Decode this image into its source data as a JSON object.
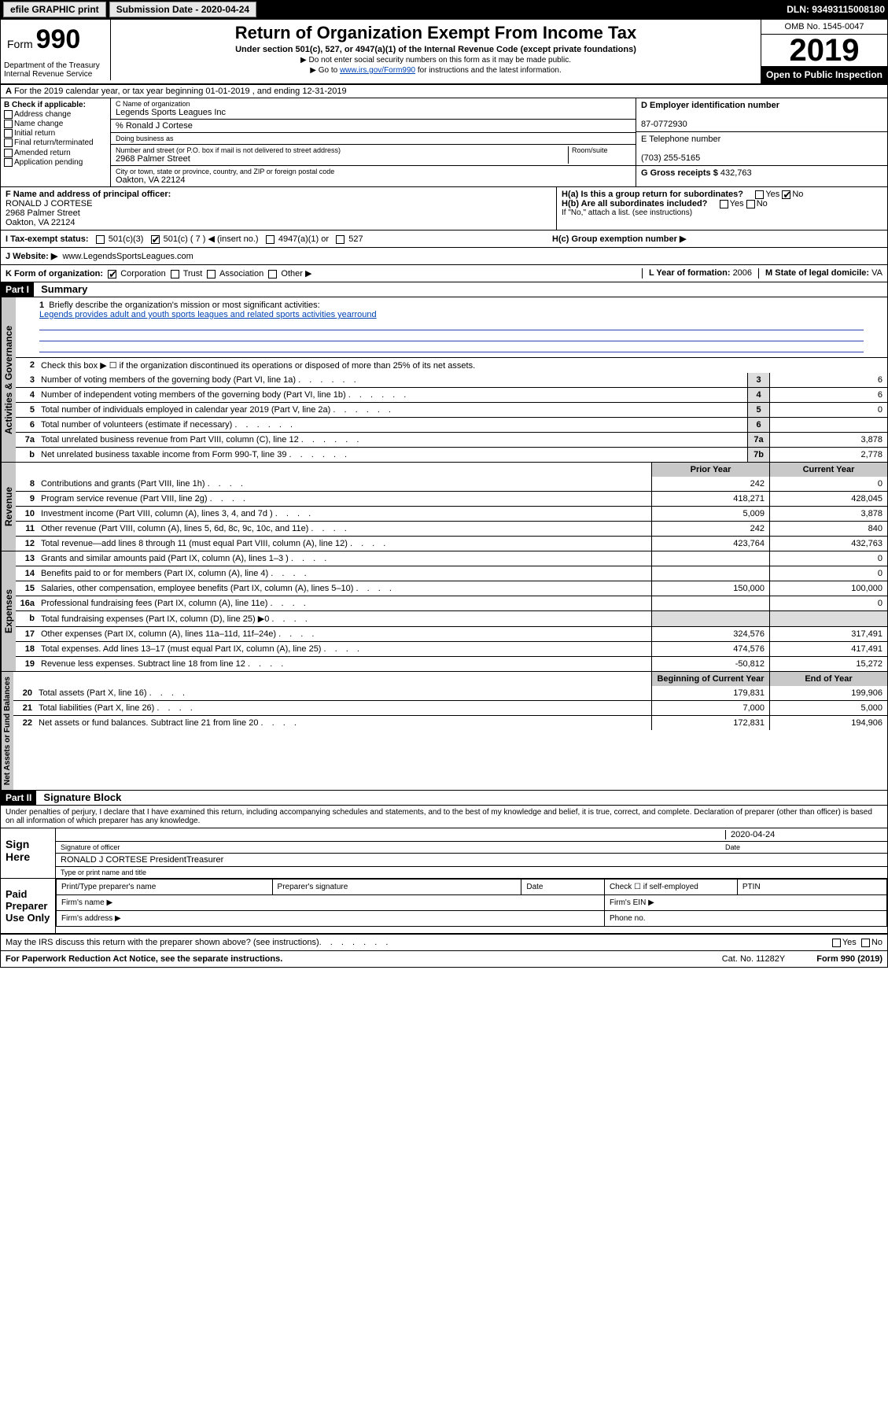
{
  "header": {
    "efile": "efile GRAPHIC print",
    "submission_label": "Submission Date - 2020-04-24",
    "dln": "DLN: 93493115008180"
  },
  "form": {
    "form_prefix": "Form",
    "form_number": "990",
    "title": "Return of Organization Exempt From Income Tax",
    "subtitle": "Under section 501(c), 527, or 4947(a)(1) of the Internal Revenue Code (except private foundations)",
    "note1": "▶ Do not enter social security numbers on this form as it may be made public.",
    "note2_pre": "▶ Go to ",
    "note2_link": "www.irs.gov/Form990",
    "note2_post": " for instructions and the latest information.",
    "omb": "OMB No. 1545-0047",
    "year": "2019",
    "open": "Open to Public Inspection",
    "dept1": "Department of the Treasury",
    "dept2": "Internal Revenue Service"
  },
  "line_a": "For the 2019 calendar year, or tax year beginning 01-01-2019   , and ending 12-31-2019",
  "b": {
    "label": "B Check if applicable:",
    "items": [
      "Address change",
      "Name change",
      "Initial return",
      "Final return/terminated",
      "Amended return",
      "Application pending"
    ]
  },
  "c": {
    "name_label": "C Name of organization",
    "name": "Legends Sports Leagues Inc",
    "care_of": "% Ronald J Cortese",
    "dba_label": "Doing business as",
    "addr_label": "Number and street (or P.O. box if mail is not delivered to street address)",
    "room_label": "Room/suite",
    "addr": "2968 Palmer Street",
    "city_label": "City or town, state or province, country, and ZIP or foreign postal code",
    "city": "Oakton, VA  22124"
  },
  "d": {
    "label": "D Employer identification number",
    "value": "87-0772930"
  },
  "e": {
    "label": "E Telephone number",
    "value": "(703) 255-5165"
  },
  "g": {
    "label": "G Gross receipts $",
    "value": "432,763"
  },
  "f": {
    "label": "F  Name and address of principal officer:",
    "name": "RONALD J CORTESE",
    "addr1": "2968 Palmer Street",
    "addr2": "Oakton, VA  22124"
  },
  "h": {
    "a": "H(a)  Is this a group return for subordinates?",
    "b": "H(b)  Are all subordinates included?",
    "b_note": "If \"No,\" attach a list. (see instructions)",
    "c": "H(c)  Group exemption number ▶",
    "yes": "Yes",
    "no": "No"
  },
  "i": {
    "label": "I  Tax-exempt status:",
    "o1": "501(c)(3)",
    "o2": "501(c) ( 7 ) ◀ (insert no.)",
    "o3": "4947(a)(1) or",
    "o4": "527"
  },
  "j": {
    "label": "J  Website: ▶",
    "value": "www.LegendsSportsLeagues.com"
  },
  "k": {
    "label": "K Form of organization:",
    "o1": "Corporation",
    "o2": "Trust",
    "o3": "Association",
    "o4": "Other ▶"
  },
  "l": {
    "label": "L Year of formation:",
    "value": "2006"
  },
  "m": {
    "label": "M State of legal domicile:",
    "value": "VA"
  },
  "part1": {
    "tag": "Part I",
    "title": "Summary"
  },
  "summary": {
    "l1_label": "Briefly describe the organization's mission or most significant activities:",
    "l1_text": "Legends provides adult and youth sports leagues and related sports activities yearround",
    "l2": "Check this box ▶ ☐ if the organization discontinued its operations or disposed of more than 25% of its net assets.",
    "rows_gov": [
      {
        "n": "3",
        "d": "Number of voting members of the governing body (Part VI, line 1a)",
        "box": "3",
        "v": "6"
      },
      {
        "n": "4",
        "d": "Number of independent voting members of the governing body (Part VI, line 1b)",
        "box": "4",
        "v": "6"
      },
      {
        "n": "5",
        "d": "Total number of individuals employed in calendar year 2019 (Part V, line 2a)",
        "box": "5",
        "v": "0"
      },
      {
        "n": "6",
        "d": "Total number of volunteers (estimate if necessary)",
        "box": "6",
        "v": ""
      },
      {
        "n": "7a",
        "d": "Total unrelated business revenue from Part VIII, column (C), line 12",
        "box": "7a",
        "v": "3,878"
      },
      {
        "n": "b",
        "d": "Net unrelated business taxable income from Form 990-T, line 39",
        "box": "7b",
        "v": "2,778"
      }
    ],
    "hdr_prior": "Prior Year",
    "hdr_current": "Current Year",
    "rows_rev": [
      {
        "n": "8",
        "d": "Contributions and grants (Part VIII, line 1h)",
        "p": "242",
        "c": "0"
      },
      {
        "n": "9",
        "d": "Program service revenue (Part VIII, line 2g)",
        "p": "418,271",
        "c": "428,045"
      },
      {
        "n": "10",
        "d": "Investment income (Part VIII, column (A), lines 3, 4, and 7d )",
        "p": "5,009",
        "c": "3,878"
      },
      {
        "n": "11",
        "d": "Other revenue (Part VIII, column (A), lines 5, 6d, 8c, 9c, 10c, and 11e)",
        "p": "242",
        "c": "840"
      },
      {
        "n": "12",
        "d": "Total revenue—add lines 8 through 11 (must equal Part VIII, column (A), line 12)",
        "p": "423,764",
        "c": "432,763"
      }
    ],
    "rows_exp": [
      {
        "n": "13",
        "d": "Grants and similar amounts paid (Part IX, column (A), lines 1–3 )",
        "p": "",
        "c": "0"
      },
      {
        "n": "14",
        "d": "Benefits paid to or for members (Part IX, column (A), line 4)",
        "p": "",
        "c": "0"
      },
      {
        "n": "15",
        "d": "Salaries, other compensation, employee benefits (Part IX, column (A), lines 5–10)",
        "p": "150,000",
        "c": "100,000"
      },
      {
        "n": "16a",
        "d": "Professional fundraising fees (Part IX, column (A), line 11e)",
        "p": "",
        "c": "0"
      },
      {
        "n": "b",
        "d": "Total fundraising expenses (Part IX, column (D), line 25) ▶0",
        "p": "—",
        "c": "—"
      },
      {
        "n": "17",
        "d": "Other expenses (Part IX, column (A), lines 11a–11d, 11f–24e)",
        "p": "324,576",
        "c": "317,491"
      },
      {
        "n": "18",
        "d": "Total expenses. Add lines 13–17 (must equal Part IX, column (A), line 25)",
        "p": "474,576",
        "c": "417,491"
      },
      {
        "n": "19",
        "d": "Revenue less expenses. Subtract line 18 from line 12",
        "p": "-50,812",
        "c": "15,272"
      }
    ],
    "hdr_begin": "Beginning of Current Year",
    "hdr_end": "End of Year",
    "rows_net": [
      {
        "n": "20",
        "d": "Total assets (Part X, line 16)",
        "p": "179,831",
        "c": "199,906"
      },
      {
        "n": "21",
        "d": "Total liabilities (Part X, line 26)",
        "p": "7,000",
        "c": "5,000"
      },
      {
        "n": "22",
        "d": "Net assets or fund balances. Subtract line 21 from line 20",
        "p": "172,831",
        "c": "194,906"
      }
    ],
    "tabs": {
      "gov": "Activities & Governance",
      "rev": "Revenue",
      "exp": "Expenses",
      "net": "Net Assets or Fund Balances"
    }
  },
  "part2": {
    "tag": "Part II",
    "title": "Signature Block"
  },
  "sig": {
    "perjury": "Under penalties of perjury, I declare that I have examined this return, including accompanying schedules and statements, and to the best of my knowledge and belief, it is true, correct, and complete. Declaration of preparer (other than officer) is based on all information of which preparer has any knowledge.",
    "sign_here": "Sign Here",
    "date": "2020-04-24",
    "date_label": "Date",
    "sig_officer": "Signature of officer",
    "name_title": "RONALD J CORTESE PresidentTreasurer",
    "name_title_label": "Type or print name and title",
    "paid": "Paid Preparer Use Only",
    "cols": {
      "c1": "Print/Type preparer's name",
      "c2": "Preparer's signature",
      "c3": "Date",
      "c4a": "Check ☐ if self-employed",
      "c4b": "PTIN"
    },
    "firm_name": "Firm's name  ▶",
    "firm_ein": "Firm's EIN ▶",
    "firm_addr": "Firm's address ▶",
    "phone": "Phone no."
  },
  "footer": {
    "discuss": "May the IRS discuss this return with the preparer shown above? (see instructions)",
    "yes": "Yes",
    "no": "No",
    "pra": "For Paperwork Reduction Act Notice, see the separate instructions.",
    "cat": "Cat. No. 11282Y",
    "formref": "Form 990 (2019)"
  }
}
